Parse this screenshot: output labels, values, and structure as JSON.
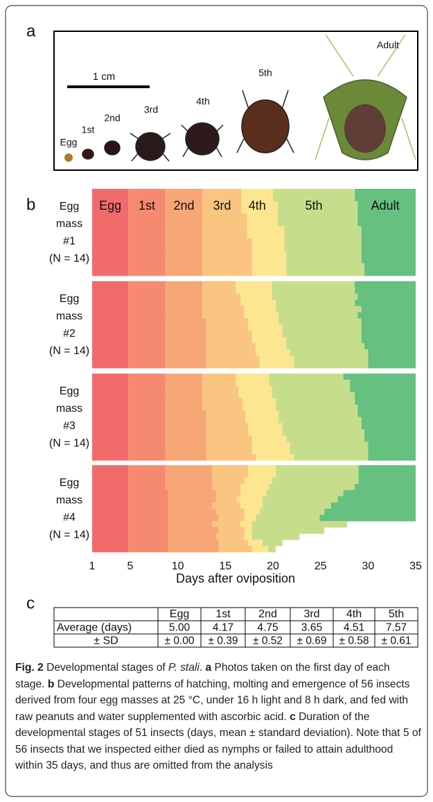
{
  "panel_a": {
    "label": "a",
    "scale": "1 cm",
    "stages": [
      "Egg",
      "1st",
      "2nd",
      "3rd",
      "4th",
      "5th",
      "Adult"
    ]
  },
  "panel_b": {
    "label": "b"
  },
  "chart_data": {
    "type": "timeline",
    "x_label": "Days after oviposition",
    "xlim": [
      1,
      35
    ],
    "xticks": [
      1,
      5,
      10,
      15,
      20,
      25,
      30,
      35
    ],
    "stages": [
      "Egg",
      "1st",
      "2nd",
      "3rd",
      "4th",
      "5th",
      "Adult"
    ],
    "colors": [
      "#f26b6b",
      "#f58a70",
      "#f7a676",
      "#fac580",
      "#fde690",
      "#c6de8b",
      "#66c07f"
    ],
    "groups": [
      {
        "label": [
          "Egg",
          "mass",
          "#1",
          "(N = 14)"
        ],
        "rows": [
          [
            1,
            4.8,
            8.7,
            12.6,
            16.7,
            20.0,
            28.6,
            35
          ],
          [
            1,
            4.8,
            8.7,
            12.6,
            16.7,
            20.0,
            28.6,
            35
          ],
          [
            1,
            4.8,
            8.7,
            12.6,
            16.7,
            20.5,
            28.9,
            35
          ],
          [
            1,
            4.8,
            8.7,
            12.6,
            16.7,
            20.5,
            28.9,
            35
          ],
          [
            1,
            4.8,
            8.7,
            12.6,
            17.3,
            20.5,
            28.9,
            35
          ],
          [
            1,
            4.8,
            8.7,
            12.6,
            17.3,
            20.5,
            28.9,
            35
          ],
          [
            1,
            4.8,
            8.7,
            12.6,
            17.3,
            21.2,
            29.3,
            35
          ],
          [
            1,
            4.8,
            8.7,
            12.6,
            17.3,
            21.2,
            29.3,
            35
          ],
          [
            1,
            4.8,
            8.7,
            12.6,
            17.8,
            21.2,
            29.3,
            35
          ],
          [
            1,
            4.8,
            8.7,
            12.6,
            17.8,
            21.2,
            29.3,
            35
          ],
          [
            1,
            4.8,
            8.7,
            12.6,
            17.8,
            21.4,
            29.3,
            35
          ],
          [
            1,
            4.8,
            8.7,
            12.6,
            17.8,
            21.4,
            29.3,
            35
          ],
          [
            1,
            4.8,
            8.7,
            12.6,
            17.8,
            21.4,
            29.6,
            35
          ],
          [
            1,
            4.8,
            8.7,
            12.6,
            17.8,
            21.4,
            29.6,
            35
          ]
        ]
      },
      {
        "label": [
          "Egg",
          "mass",
          "#2",
          "(N = 14)"
        ],
        "rows": [
          [
            1,
            4.8,
            8.7,
            12.6,
            16.1,
            19.9,
            28.6,
            35
          ],
          [
            1,
            4.8,
            8.7,
            12.6,
            16.1,
            19.9,
            28.6,
            35
          ],
          [
            1,
            4.8,
            8.7,
            12.6,
            16.6,
            19.9,
            28.9,
            35
          ],
          [
            1,
            4.8,
            8.7,
            12.6,
            16.6,
            20.3,
            28.6,
            35
          ],
          [
            1,
            4.8,
            8.7,
            12.6,
            17.0,
            20.3,
            29.3,
            35
          ],
          [
            1,
            4.8,
            8.7,
            12.6,
            17.0,
            20.6,
            28.9,
            35
          ],
          [
            1,
            4.8,
            8.7,
            13.0,
            17.4,
            20.6,
            29.3,
            35
          ],
          [
            1,
            4.8,
            8.7,
            13.0,
            17.4,
            21.0,
            29.3,
            35
          ],
          [
            1,
            4.8,
            8.7,
            13.0,
            17.8,
            21.0,
            29.3,
            35
          ],
          [
            1,
            4.8,
            8.7,
            13.0,
            17.8,
            21.4,
            29.3,
            35
          ],
          [
            1,
            4.8,
            8.7,
            13.0,
            18.2,
            21.4,
            29.6,
            35
          ],
          [
            1,
            4.8,
            8.7,
            13.0,
            18.2,
            21.8,
            30.0,
            35
          ],
          [
            1,
            4.8,
            8.7,
            13.0,
            18.6,
            22.2,
            30.0,
            35
          ],
          [
            1,
            4.8,
            8.7,
            13.0,
            18.6,
            22.2,
            30.0,
            35
          ]
        ]
      },
      {
        "label": [
          "Egg",
          "mass",
          "#3",
          "(N = 14)"
        ],
        "rows": [
          [
            1,
            4.8,
            8.7,
            12.6,
            16.1,
            19.6,
            27.4,
            35
          ],
          [
            1,
            4.8,
            8.7,
            12.6,
            16.1,
            19.6,
            28.1,
            35
          ],
          [
            1,
            4.8,
            8.7,
            12.6,
            16.4,
            19.9,
            28.1,
            35
          ],
          [
            1,
            4.8,
            8.7,
            12.6,
            16.4,
            19.9,
            28.6,
            35
          ],
          [
            1,
            4.8,
            8.7,
            12.6,
            16.8,
            20.3,
            28.6,
            35
          ],
          [
            1,
            4.8,
            8.7,
            12.6,
            16.8,
            20.3,
            28.9,
            35
          ],
          [
            1,
            4.8,
            8.7,
            13.0,
            17.1,
            20.6,
            28.9,
            35
          ],
          [
            1,
            4.8,
            8.7,
            13.0,
            17.1,
            20.6,
            29.3,
            35
          ],
          [
            1,
            4.8,
            8.7,
            13.0,
            17.4,
            21.0,
            29.3,
            35
          ],
          [
            1,
            4.8,
            8.7,
            13.0,
            17.4,
            21.0,
            29.6,
            35
          ],
          [
            1,
            4.8,
            8.7,
            13.0,
            17.8,
            21.4,
            29.6,
            35
          ],
          [
            1,
            4.8,
            8.7,
            13.0,
            17.8,
            21.8,
            30.0,
            35
          ],
          [
            1,
            4.8,
            8.7,
            13.0,
            17.8,
            21.8,
            30.0,
            35
          ],
          [
            1,
            4.8,
            8.7,
            13.0,
            18.2,
            22.2,
            30.0,
            35
          ]
        ]
      },
      {
        "label": [
          "Egg",
          "mass",
          "#4",
          "(N = 14)"
        ],
        "rows": [
          [
            1,
            4.8,
            8.7,
            13.6,
            17.4,
            20.3,
            29.0,
            35
          ],
          [
            1,
            4.8,
            8.7,
            13.6,
            17.4,
            20.3,
            29.0,
            35
          ],
          [
            1,
            4.8,
            8.7,
            13.6,
            17.0,
            19.9,
            29.0,
            35
          ],
          [
            1,
            4.8,
            8.7,
            13.6,
            16.6,
            19.6,
            28.6,
            35
          ],
          [
            1,
            4.8,
            9.0,
            14.0,
            16.6,
            19.3,
            27.4,
            35
          ],
          [
            1,
            4.8,
            9.0,
            14.0,
            16.2,
            18.9,
            26.8,
            35
          ],
          [
            1,
            4.8,
            9.0,
            13.6,
            16.6,
            18.9,
            26.1,
            35
          ],
          [
            1,
            4.8,
            9.0,
            14.0,
            17.0,
            18.6,
            25.4,
            35
          ],
          [
            1,
            4.8,
            9.0,
            14.3,
            17.0,
            18.2,
            24.9,
            35
          ],
          [
            1,
            4.8,
            9.0,
            13.6,
            16.6,
            17.8,
            null,
            27.8
          ],
          [
            1,
            4.8,
            9.0,
            14.3,
            17.0,
            17.8,
            null,
            25.4
          ],
          [
            1,
            4.8,
            9.0,
            14.0,
            17.0,
            17.8,
            null,
            22.8
          ],
          [
            1,
            4.8,
            9.0,
            14.3,
            17.4,
            18.9,
            null,
            21.0
          ],
          [
            1,
            4.8,
            9.0,
            14.3,
            17.8,
            19.5,
            null,
            20.3
          ]
        ]
      }
    ]
  },
  "panel_c": {
    "label": "c"
  },
  "table": {
    "columns": [
      "Egg",
      "1st",
      "2nd",
      "3rd",
      "4th",
      "5th"
    ],
    "rows": [
      {
        "label": "Average (days)",
        "cells": [
          "5.00",
          "4.17",
          "4.75",
          "3.65",
          "4.51",
          "7.57"
        ]
      },
      {
        "label": "± SD",
        "cells": [
          "± 0.00",
          "± 0.39",
          "± 0.52",
          "± 0.69",
          "± 0.58",
          "± 0.61"
        ]
      }
    ]
  },
  "caption": {
    "label": "Fig. 2",
    "title_pre": " Developmental stages of ",
    "species": "P. stali",
    "title_post": ". ",
    "a": "a",
    "text_a": " Photos taken on the first day of each stage. ",
    "b": "b",
    "text_b": " Developmental patterns of hatching, molting and emergence of 56 insects derived from four egg masses at 25 °C, under 16 h light and 8 h dark, and fed with raw peanuts and water supplemented with ascorbic acid. ",
    "c": "c",
    "text_c": " Duration of the developmental stages of 51 insects (days, mean ± standard deviation). Note that 5 of 56 insects that we inspected either died as nymphs or failed to attain adulthood within 35 days, and thus are omitted from the analysis"
  }
}
